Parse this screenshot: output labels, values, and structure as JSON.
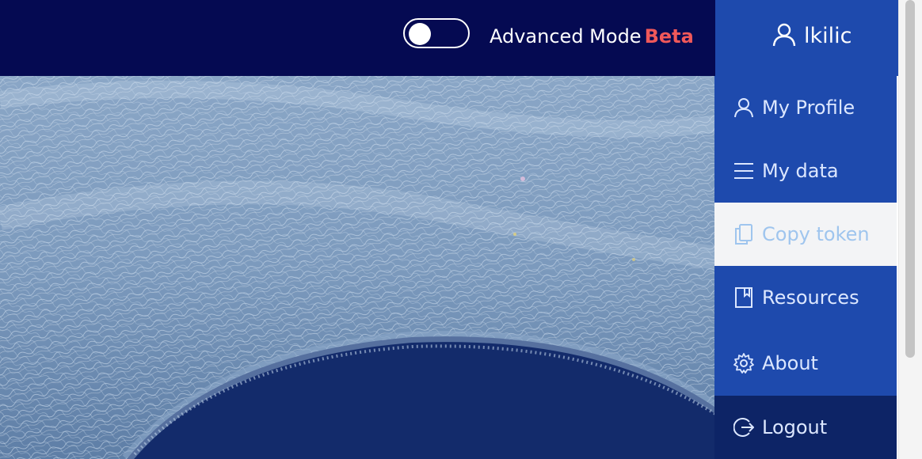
{
  "header": {
    "advanced_mode_label": "Advanced Mode",
    "beta_label": "Beta",
    "advanced_mode_enabled": false,
    "username": "lkilic",
    "user_icon": "user-icon"
  },
  "user_menu": {
    "items": [
      {
        "label": "My Profile",
        "icon": "user-icon"
      },
      {
        "label": "My data",
        "icon": "menu-lines-icon"
      },
      {
        "label": "Copy token",
        "icon": "copy-icon"
      },
      {
        "label": "Resources",
        "icon": "book-icon"
      },
      {
        "label": "About",
        "icon": "gear-icon"
      },
      {
        "label": "Logout",
        "icon": "logout-icon"
      }
    ]
  },
  "colors": {
    "topbar": "#050a52",
    "menu": "#1e4aad",
    "logout_bg": "#0d2466",
    "beta": "#f0585a"
  }
}
